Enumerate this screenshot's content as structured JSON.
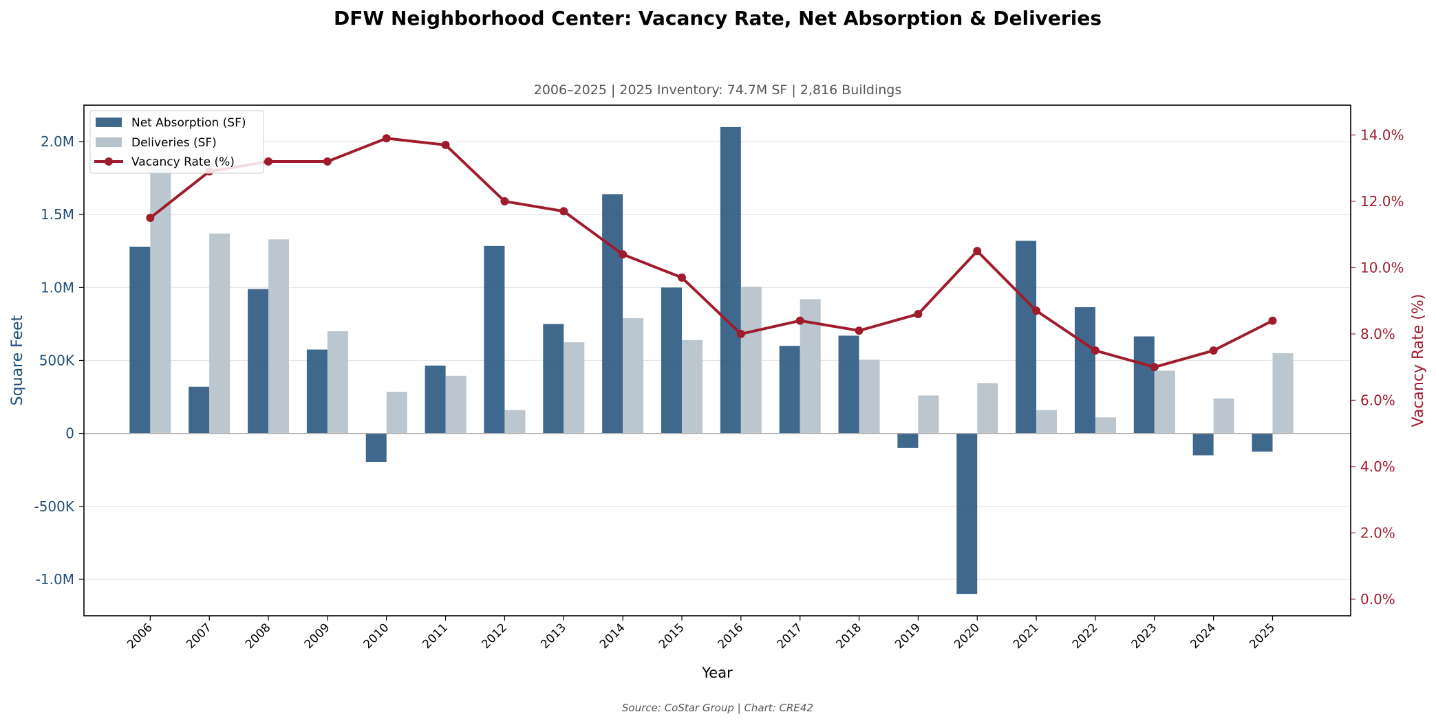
{
  "chart_data": {
    "type": "bar",
    "title": "DFW Neighborhood Center: Vacancy Rate, Net Absorption & Deliveries",
    "subtitle": "2006–2025  |  2025 Inventory: 74.7M SF  |  2,816 Buildings",
    "source": "Source: CoStar Group  |  Chart: CRE42",
    "xlabel": "Year",
    "ylabel": "Square Feet",
    "y2label": "Vacancy Rate (%)",
    "categories": [
      "2006",
      "2007",
      "2008",
      "2009",
      "2010",
      "2011",
      "2012",
      "2013",
      "2014",
      "2015",
      "2016",
      "2017",
      "2018",
      "2019",
      "2020",
      "2021",
      "2022",
      "2023",
      "2024",
      "2025"
    ],
    "ylim": [
      -1250000,
      2250000
    ],
    "y2lim": [
      -0.5,
      14.9
    ],
    "yticks": [
      -1000000,
      -500000,
      0,
      500000,
      1000000,
      1500000,
      2000000
    ],
    "ytick_labels": [
      "-1.0M",
      "-500K",
      "0",
      "500K",
      "1.0M",
      "1.5M",
      "2.0M"
    ],
    "y2ticks": [
      0,
      2,
      4,
      6,
      8,
      10,
      12,
      14
    ],
    "y2tick_labels": [
      "0.0%",
      "2.0%",
      "4.0%",
      "6.0%",
      "8.0%",
      "10.0%",
      "12.0%",
      "14.0%"
    ],
    "grid": "horizontal",
    "legend_position": "top-left",
    "series": [
      {
        "name": "Net Absorption (SF)",
        "kind": "bar",
        "color": "#1f4e79",
        "values": [
          1280000,
          320000,
          990000,
          575000,
          -195000,
          465000,
          1285000,
          750000,
          1640000,
          1000000,
          2100000,
          600000,
          670000,
          -100000,
          -1100000,
          1320000,
          865000,
          665000,
          -150000,
          -125000
        ]
      },
      {
        "name": "Deliveries (SF)",
        "kind": "bar",
        "color": "#b7c3cb",
        "values": [
          1850000,
          1370000,
          1330000,
          700000,
          285000,
          395000,
          160000,
          625000,
          790000,
          640000,
          1005000,
          920000,
          505000,
          260000,
          345000,
          160000,
          110000,
          430000,
          240000,
          550000
        ]
      },
      {
        "name": "Vacancy Rate (%)",
        "kind": "line",
        "color": "#a01c2c",
        "values": [
          11.5,
          12.9,
          13.2,
          13.2,
          13.9,
          13.7,
          12.0,
          11.7,
          10.4,
          9.7,
          8.0,
          8.4,
          8.1,
          8.6,
          10.5,
          8.7,
          7.5,
          7.0,
          7.5,
          8.4
        ]
      }
    ]
  }
}
